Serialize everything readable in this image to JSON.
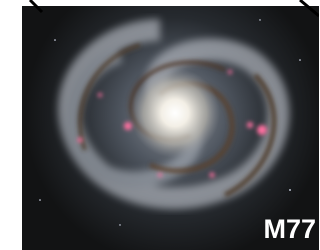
{
  "label": "M77"
}
